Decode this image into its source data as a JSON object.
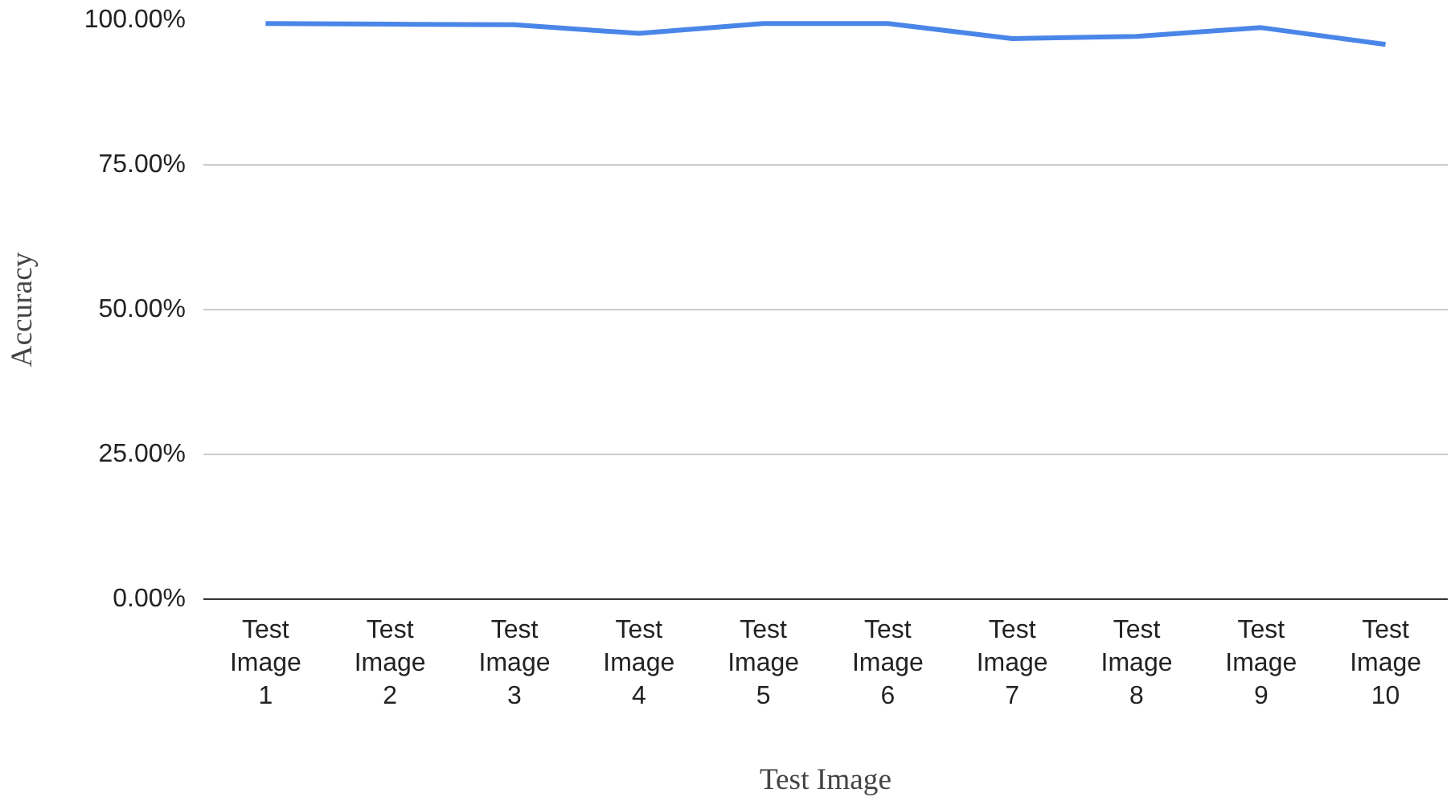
{
  "chart_data": {
    "type": "line",
    "xlabel": "Test Image",
    "ylabel": "Accuracy",
    "categories": [
      "Test Image 1",
      "Test Image 2",
      "Test Image 3",
      "Test Image 4",
      "Test Image 5",
      "Test Image 6",
      "Test Image 7",
      "Test Image 8",
      "Test Image 9",
      "Test Image 10"
    ],
    "series": [
      {
        "color": "#4a86e8",
        "values": [
          99.4,
          99.3,
          99.2,
          97.7,
          99.4,
          99.4,
          96.8,
          97.2,
          98.7,
          95.8
        ]
      }
    ],
    "ylim": [
      0,
      100
    ],
    "yticks": [
      {
        "value": 0,
        "label": "0.00%"
      },
      {
        "value": 25,
        "label": "25.00%"
      },
      {
        "value": 50,
        "label": "50.00%"
      },
      {
        "value": 75,
        "label": "75.00%"
      },
      {
        "value": 100,
        "label": "100.00%"
      }
    ],
    "grid": "y",
    "marker": "none",
    "line_style": "solid"
  }
}
